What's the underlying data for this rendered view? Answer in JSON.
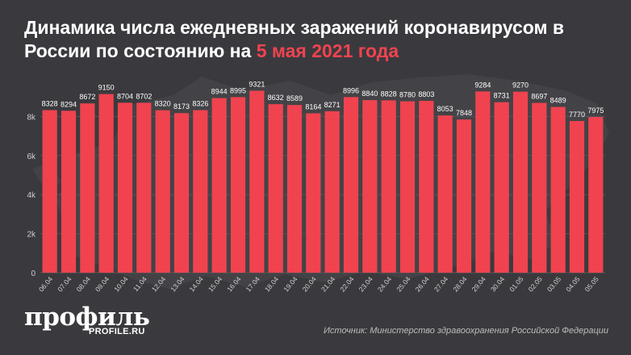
{
  "header": {
    "title_main": "Динамика числа ежедневных заражений коронавирусом в России по состоянию на ",
    "title_accent": "5 мая 2021 года"
  },
  "footer": {
    "logo_text": "профиль",
    "logo_sub": "PROFILE.RU",
    "source": "Источник: Министерство здравоохранения Российской Федерации"
  },
  "colors": {
    "background": "#3a3a3e",
    "bar": "#f0434f",
    "accent": "#f0434f",
    "text": "#ffffff",
    "axis_text": "#cfcfcf"
  },
  "chart_data": {
    "type": "bar",
    "categories": [
      "06.04",
      "07.04",
      "08.04",
      "09.04",
      "10.04",
      "11.04",
      "12.04",
      "13.04",
      "14.04",
      "15.04",
      "16.04",
      "17.04",
      "18.04",
      "19.04",
      "20.04",
      "21.04",
      "22.04",
      "23.04",
      "24.04",
      "25.04",
      "26.04",
      "27.04",
      "28.04",
      "29.04",
      "30.04",
      "01.05",
      "02.05",
      "03.05",
      "04.05",
      "05.05"
    ],
    "values": [
      8328,
      8294,
      8672,
      9150,
      8704,
      8702,
      8320,
      8173,
      8326,
      8944,
      8995,
      9321,
      8632,
      8589,
      8164,
      8271,
      8996,
      8840,
      8828,
      8780,
      8803,
      8053,
      7848,
      9284,
      8731,
      9270,
      8697,
      8489,
      7770,
      7975
    ],
    "value_labels": [
      "8328",
      "8294",
      "8672",
      "9150",
      "8704",
      "8702",
      "8320",
      "8173",
      "8326",
      "8944",
      "8995",
      "9321",
      "8632",
      "8589",
      "8164",
      "8271",
      "8996",
      "8840",
      "8828",
      "8780",
      "8803",
      "8053",
      "7848",
      "9284",
      "8731",
      "9270",
      "8697",
      "8489",
      "7770",
      "7975"
    ],
    "ylim": [
      0,
      10000
    ],
    "yticks": [
      0,
      2000,
      4000,
      6000,
      8000
    ],
    "ytick_labels": [
      "0",
      "2k",
      "4k",
      "6k",
      "8k"
    ],
    "grid": true,
    "xlabel": "",
    "ylabel": ""
  }
}
